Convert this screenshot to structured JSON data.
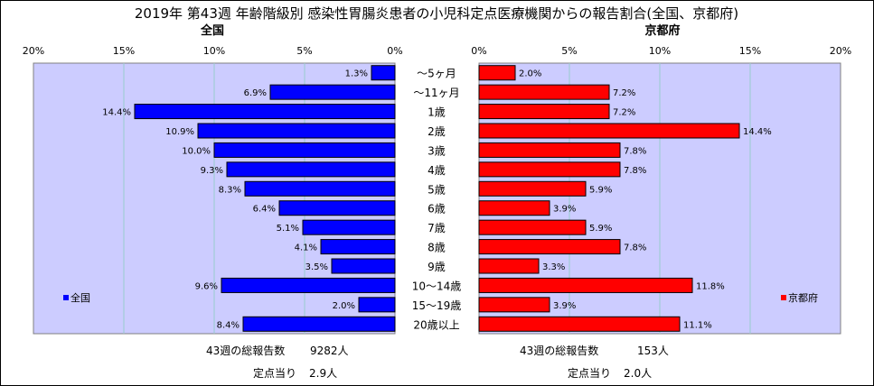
{
  "chart": {
    "title": "2019年 第43週 年齢階級別 感染性胃腸炎患者の小児科定点医療機関からの報告割合(全国、京都府)"
  },
  "chart_data": [
    {
      "type": "bar",
      "orientation": "horizontal",
      "direction": "right-to-left",
      "title": "全国",
      "xlim": [
        0,
        20
      ],
      "ticks": [
        "20%",
        "15%",
        "10%",
        "5%",
        "0%"
      ],
      "tick_values": [
        20,
        15,
        10,
        5,
        0
      ],
      "grid": true,
      "legend": "bottom-left",
      "series": [
        {
          "name": "全国",
          "color": "#0000ff",
          "values": [
            1.3,
            6.9,
            14.4,
            10.9,
            10.0,
            9.3,
            8.3,
            6.4,
            5.1,
            4.1,
            3.5,
            9.6,
            2.0,
            8.4
          ],
          "labels": [
            "1.3%",
            "6.9%",
            "14.4%",
            "10.9%",
            "10.0%",
            "9.3%",
            "8.3%",
            "6.4%",
            "5.1%",
            "4.1%",
            "3.5%",
            "9.6%",
            "2.0%",
            "8.4%"
          ]
        }
      ]
    },
    {
      "type": "bar",
      "orientation": "horizontal",
      "direction": "left-to-right",
      "title": "京都府",
      "xlim": [
        0,
        20
      ],
      "ticks": [
        "0%",
        "5%",
        "10%",
        "15%",
        "20%"
      ],
      "tick_values": [
        0,
        5,
        10,
        15,
        20
      ],
      "grid": true,
      "legend": "bottom-right",
      "series": [
        {
          "name": "京都府",
          "color": "#ff0000",
          "values": [
            2.0,
            7.2,
            7.2,
            14.4,
            7.8,
            7.8,
            5.9,
            3.9,
            5.9,
            7.8,
            3.3,
            11.8,
            3.9,
            11.1
          ],
          "labels": [
            "2.0%",
            "7.2%",
            "7.2%",
            "14.4%",
            "7.8%",
            "7.8%",
            "5.9%",
            "3.9%",
            "5.9%",
            "7.8%",
            "3.3%",
            "11.8%",
            "3.9%",
            "11.1%"
          ]
        }
      ]
    }
  ],
  "categories": [
    "～5ヶ月",
    "～11ヶ月",
    "1歳",
    "2歳",
    "3歳",
    "4歳",
    "5歳",
    "6歳",
    "7歳",
    "8歳",
    "9歳",
    "10～14歳",
    "15～19歳",
    "20歳以上"
  ],
  "summary": {
    "national": {
      "total_label": "43週の総報告数",
      "total_value": "9282人",
      "per_label": "定点当り",
      "per_value": "2.9人"
    },
    "kyoto": {
      "total_label": "43週の総報告数",
      "total_value": "153人",
      "per_label": "定点当り",
      "per_value": "2.0人"
    }
  },
  "colors": {
    "plot_bg": "#ccccff",
    "grid": "#99cccc",
    "national_bar": "#0000ff",
    "kyoto_bar": "#ff0000"
  }
}
